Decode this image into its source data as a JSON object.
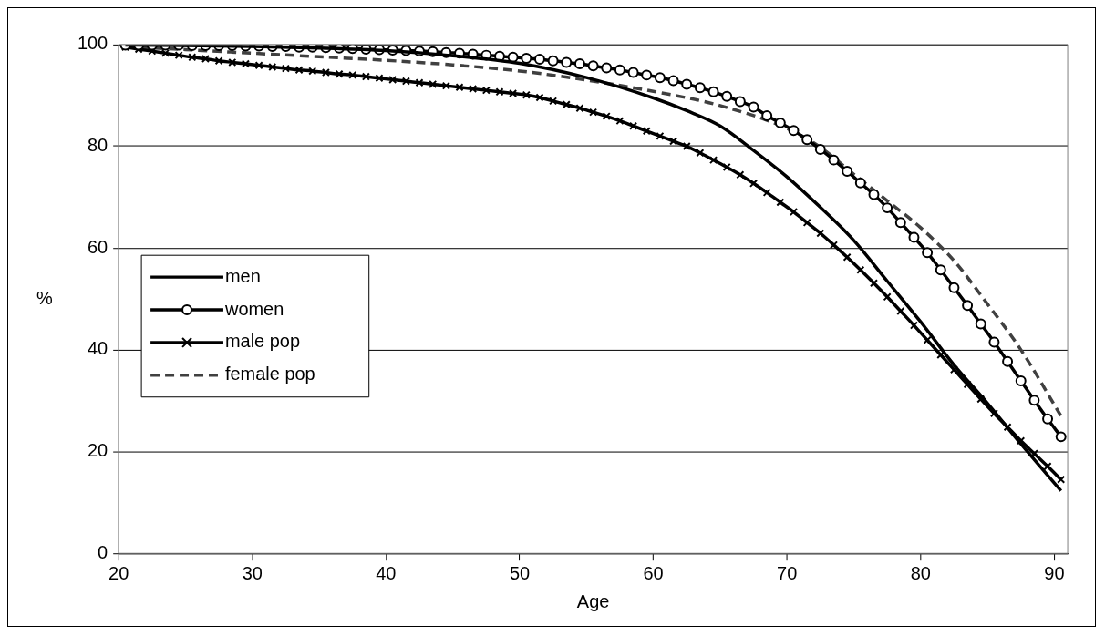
{
  "chart_data": {
    "type": "line",
    "xlabel": "Age",
    "ylabel": "%",
    "xlim": [
      20,
      91
    ],
    "xticks": [
      20,
      30,
      40,
      50,
      60,
      70,
      80,
      90
    ],
    "ylim": [
      0,
      100
    ],
    "yticks": [
      0,
      20,
      40,
      60,
      80,
      100
    ],
    "grid": "y",
    "legend": "left",
    "series": [
      {
        "name": "men",
        "color": "#000000",
        "marker": "none",
        "line_style": "solid",
        "x": [
          20.5,
          25,
          30,
          35,
          40,
          45,
          50,
          55,
          60,
          62.5,
          65,
          67.5,
          70,
          72.5,
          75,
          77.5,
          80,
          82.5,
          85,
          87.5,
          90.5
        ],
        "values": [
          99.9,
          99.8,
          99.6,
          99.3,
          98.8,
          97.8,
          96.3,
          93.5,
          89.5,
          87.0,
          84.0,
          79.2,
          74.0,
          68.0,
          61.5,
          53.5,
          45.5,
          37.0,
          29.5,
          21.5,
          12.3
        ]
      },
      {
        "name": "women",
        "color": "#000000",
        "marker": "circle",
        "line_style": "solid",
        "x": [
          20.5,
          21.5,
          22.5,
          23.5,
          24.5,
          25.5,
          26.5,
          27.5,
          28.5,
          29.5,
          30.5,
          31.5,
          32.5,
          33.5,
          34.5,
          35.5,
          36.5,
          37.5,
          38.5,
          39.5,
          40.5,
          41.5,
          42.5,
          43.5,
          44.5,
          45.5,
          46.5,
          47.5,
          48.5,
          49.5,
          50.5,
          51.5,
          52.5,
          53.5,
          54.5,
          55.5,
          56.5,
          57.5,
          58.5,
          59.5,
          60.5,
          61.5,
          62.5,
          63.5,
          64.5,
          65.5,
          66.5,
          67.5,
          68.5,
          69.5,
          70.5,
          71.5,
          72.5,
          73.5,
          74.5,
          75.5,
          76.5,
          77.5,
          78.5,
          79.5,
          80.5,
          81.5,
          82.5,
          83.5,
          84.5,
          85.5,
          86.5,
          87.5,
          88.5,
          89.5,
          90.5
        ],
        "values": [
          99.9,
          99.9,
          99.9,
          99.9,
          99.9,
          99.8,
          99.8,
          99.8,
          99.8,
          99.7,
          99.7,
          99.6,
          99.6,
          99.5,
          99.5,
          99.4,
          99.3,
          99.2,
          99.1,
          99.0,
          98.9,
          98.8,
          98.7,
          98.6,
          98.4,
          98.3,
          98.1,
          97.9,
          97.7,
          97.5,
          97.3,
          97.1,
          96.8,
          96.5,
          96.2,
          95.8,
          95.4,
          95.0,
          94.5,
          94.0,
          93.5,
          92.9,
          92.2,
          91.5,
          90.7,
          89.8,
          88.8,
          87.7,
          86.0,
          84.6,
          83.1,
          81.3,
          79.4,
          77.3,
          75.1,
          72.8,
          70.5,
          67.9,
          65.0,
          62.1,
          59.1,
          55.7,
          52.2,
          48.7,
          45.1,
          41.5,
          37.7,
          33.9,
          30.1,
          26.4,
          22.9
        ]
      },
      {
        "name": "male pop",
        "color": "#000000",
        "marker": "cross",
        "line_style": "solid",
        "x": [
          20.5,
          21.5,
          22.5,
          23.5,
          24.5,
          25.5,
          26.5,
          27.5,
          28.5,
          29.5,
          30.5,
          31.5,
          32.5,
          33.5,
          34.5,
          35.5,
          36.5,
          37.5,
          38.5,
          39.5,
          40.5,
          41.5,
          42.5,
          43.5,
          44.5,
          45.5,
          46.5,
          47.5,
          48.5,
          49.5,
          50.5,
          51.5,
          52.5,
          53.5,
          54.5,
          55.5,
          56.5,
          57.5,
          58.5,
          59.5,
          60.5,
          61.5,
          62.5,
          63.5,
          64.5,
          65.5,
          66.5,
          67.5,
          68.5,
          69.5,
          70.5,
          71.5,
          72.5,
          73.5,
          74.5,
          75.5,
          76.5,
          77.5,
          78.5,
          79.5,
          80.5,
          81.5,
          82.5,
          83.5,
          84.5,
          85.5,
          86.5,
          87.5,
          88.5,
          89.5,
          90.5
        ],
        "values": [
          99.5,
          99.1,
          98.7,
          98.3,
          97.9,
          97.5,
          97.2,
          96.8,
          96.5,
          96.2,
          95.9,
          95.6,
          95.3,
          95.0,
          94.8,
          94.5,
          94.2,
          94.0,
          93.7,
          93.4,
          93.1,
          92.8,
          92.5,
          92.2,
          91.9,
          91.6,
          91.3,
          91.0,
          90.7,
          90.4,
          90.1,
          89.6,
          88.9,
          88.2,
          87.5,
          86.7,
          85.9,
          85.0,
          84.0,
          83.0,
          82.0,
          81.0,
          80.0,
          78.7,
          77.3,
          75.9,
          74.4,
          72.7,
          70.9,
          69.0,
          67.1,
          65.0,
          62.9,
          60.6,
          58.2,
          55.7,
          53.1,
          50.4,
          47.6,
          44.8,
          41.9,
          39.0,
          36.1,
          33.2,
          30.3,
          27.5,
          24.8,
          22.1,
          19.6,
          17.1,
          14.5
        ]
      },
      {
        "name": "female pop",
        "color": "#404040",
        "marker": "none",
        "line_style": "dashed",
        "x": [
          20.5,
          25,
          30,
          35,
          40,
          45,
          50,
          55,
          60,
          65,
          70,
          72.5,
          75,
          77.5,
          80,
          82.5,
          85,
          87.5,
          90.5
        ],
        "values": [
          99.6,
          99.0,
          98.3,
          97.6,
          96.9,
          96.0,
          94.8,
          93.0,
          90.8,
          88.0,
          83.5,
          79.8,
          74.5,
          69.3,
          64.0,
          57.5,
          49.0,
          40.0,
          27.0
        ]
      }
    ]
  }
}
